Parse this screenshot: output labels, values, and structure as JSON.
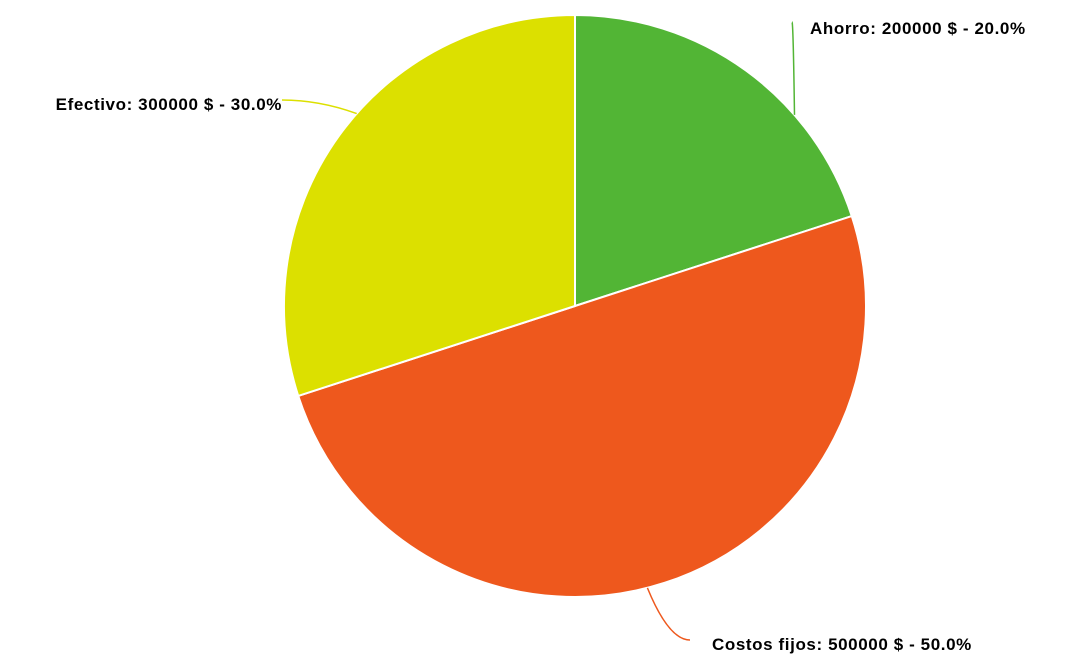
{
  "chart_data": {
    "type": "pie",
    "title": "",
    "unit": "$",
    "slices": [
      {
        "name": "Ahorro",
        "value": 200000,
        "percent": 20.0,
        "color": "#52b535",
        "label": "Ahorro: 200000 $ - 20.0%"
      },
      {
        "name": "Costos fijos",
        "value": 500000,
        "percent": 50.0,
        "color": "#ee581d",
        "label": "Costos fijos: 500000 $ - 50.0%"
      },
      {
        "name": "Efectivo",
        "value": 300000,
        "percent": 30.0,
        "color": "#dce000",
        "label": "Efectivo: 300000 $ - 30.0%"
      }
    ],
    "start_angle_deg": 0,
    "direction": "clockwise"
  }
}
